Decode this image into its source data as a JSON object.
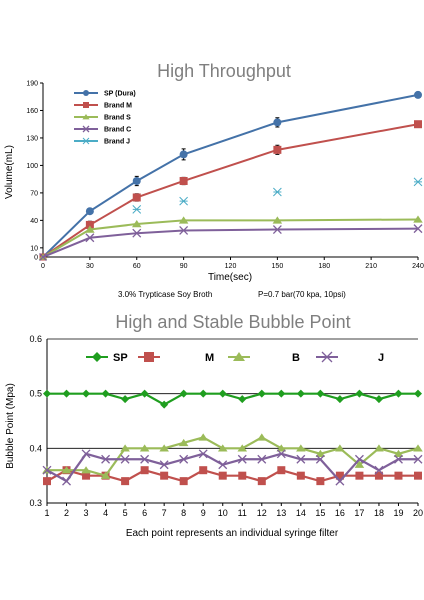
{
  "chart_data": [
    {
      "type": "line",
      "title": "High Throughput",
      "xlabel": "Time(sec)",
      "ylabel": "Volume(mL)",
      "note_left": "3.0% Trypticase Soy Broth",
      "note_right": "P=0.7 bar(70 kpa, 10psi)",
      "xlim": [
        0,
        240
      ],
      "ylim": [
        0,
        190
      ],
      "xticks": [
        "0",
        "30",
        "60",
        "90",
        "120",
        "150",
        "180",
        "210",
        "240"
      ],
      "yticks": [
        "0",
        "10",
        "40",
        "70",
        "100",
        "130",
        "160",
        "190"
      ],
      "legend_position": "top-left",
      "series": [
        {
          "name": "SP (Dura)",
          "color": "#4472a8",
          "marker": "circle",
          "x": [
            0,
            30,
            60,
            90,
            150,
            240
          ],
          "y": [
            0,
            50,
            83,
            112,
            147,
            177
          ],
          "err": [
            0,
            0,
            5,
            6,
            5,
            0
          ]
        },
        {
          "name": "Brand M",
          "color": "#c0504d",
          "marker": "square",
          "x": [
            0,
            30,
            60,
            90,
            150,
            240
          ],
          "y": [
            0,
            35,
            65,
            83,
            117,
            145
          ],
          "err": [
            0,
            4,
            4,
            4,
            5,
            0
          ]
        },
        {
          "name": "Brand S",
          "color": "#9bbb59",
          "marker": "triangle",
          "x": [
            0,
            30,
            60,
            90,
            150,
            240
          ],
          "y": [
            0,
            30,
            36,
            40,
            40,
            41
          ],
          "err": [
            0,
            0,
            0,
            0,
            0,
            0
          ]
        },
        {
          "name": "Brand C",
          "color": "#7f609a",
          "marker": "x",
          "x": [
            0,
            30,
            60,
            90,
            150,
            240
          ],
          "y": [
            0,
            21,
            26,
            29,
            30,
            31
          ],
          "err": [
            0,
            0,
            0,
            0,
            0,
            0
          ]
        },
        {
          "name": "Brand J",
          "color": "#4bacc6",
          "marker": "star",
          "no_line": true,
          "x": [
            60,
            90,
            150,
            240
          ],
          "y": [
            52,
            61,
            71,
            82
          ],
          "err": [
            0,
            0,
            0,
            0
          ]
        }
      ]
    },
    {
      "type": "line",
      "title": "High and Stable Bubble Point",
      "xlabel": "Each point represents an individual syringe filter",
      "ylabel": "Bubble Point (Mpa)",
      "xlim": [
        1,
        20
      ],
      "ylim": [
        0.3,
        0.6
      ],
      "xticks": [
        "1",
        "2",
        "3",
        "4",
        "5",
        "6",
        "7",
        "8",
        "9",
        "10",
        "11",
        "12",
        "13",
        "14",
        "15",
        "16",
        "17",
        "18",
        "19",
        "20"
      ],
      "yticks": [
        "0.3",
        "0.4",
        "0.5",
        "0.6"
      ],
      "grid": true,
      "legend_position": "top",
      "legend_labels": [
        "SP",
        "M",
        "B",
        "J"
      ],
      "series": [
        {
          "color": "#1f9e1f",
          "marker": "diamond",
          "y": [
            0.5,
            0.5,
            0.5,
            0.5,
            0.49,
            0.5,
            0.48,
            0.5,
            0.5,
            0.5,
            0.49,
            0.5,
            0.5,
            0.5,
            0.5,
            0.49,
            0.5,
            0.49,
            0.5,
            0.5
          ]
        },
        {
          "color": "#c0504d",
          "marker": "square",
          "y": [
            0.34,
            0.36,
            0.35,
            0.35,
            0.34,
            0.36,
            0.35,
            0.34,
            0.36,
            0.35,
            0.35,
            0.34,
            0.36,
            0.35,
            0.34,
            0.35,
            0.35,
            0.35,
            0.35,
            0.35
          ]
        },
        {
          "color": "#9bbb59",
          "marker": "triangle",
          "y": [
            0.36,
            0.36,
            0.36,
            0.35,
            0.4,
            0.4,
            0.4,
            0.41,
            0.42,
            0.4,
            0.4,
            0.42,
            0.4,
            0.4,
            0.39,
            0.4,
            0.37,
            0.4,
            0.39,
            0.4
          ]
        },
        {
          "color": "#7f609a",
          "marker": "x",
          "y": [
            0.36,
            0.34,
            0.39,
            0.38,
            0.38,
            0.38,
            0.37,
            0.38,
            0.39,
            0.37,
            0.38,
            0.38,
            0.39,
            0.38,
            0.38,
            0.34,
            0.38,
            0.36,
            0.38,
            0.38
          ]
        }
      ]
    }
  ]
}
